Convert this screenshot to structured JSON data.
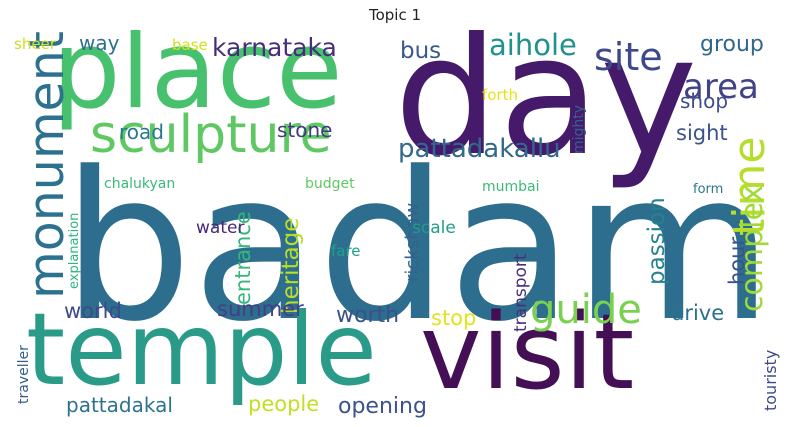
{
  "chart_data": {
    "type": "wordcloud",
    "title": "Topic 1",
    "words": [
      {
        "text": "badami",
        "color": "#2d6e8e"
      },
      {
        "text": "day",
        "color": "#451a6b"
      },
      {
        "text": "place",
        "color": "#47c16e"
      },
      {
        "text": "temple",
        "color": "#2a9a89"
      },
      {
        "text": "visit",
        "color": "#440f55"
      },
      {
        "text": "sculpture",
        "color": "#5ec962"
      },
      {
        "text": "monument",
        "color": "#2c728e"
      },
      {
        "text": "time",
        "color": "#b5de2b"
      },
      {
        "text": "site",
        "color": "#3e4989"
      },
      {
        "text": "area",
        "color": "#404388"
      },
      {
        "text": "guide",
        "color": "#7ad151"
      },
      {
        "text": "complex",
        "color": "#9fda3a"
      },
      {
        "text": "aihole",
        "color": "#21918c"
      },
      {
        "text": "karnataka",
        "color": "#472d7b"
      },
      {
        "text": "pattadakallu",
        "color": "#31688e"
      },
      {
        "text": "heritage",
        "color": "#b8de29"
      },
      {
        "text": "entrance",
        "color": "#35b779"
      },
      {
        "text": "passion",
        "color": "#25838e"
      },
      {
        "text": "hour",
        "color": "#3b528b"
      },
      {
        "text": "rickshaw",
        "color": "#355f8d"
      },
      {
        "text": "transport",
        "color": "#46307e"
      },
      {
        "text": "touristy",
        "color": "#3e4a89"
      },
      {
        "text": "road",
        "color": "#2a788e"
      },
      {
        "text": "stone",
        "color": "#443983"
      },
      {
        "text": "bus",
        "color": "#38598c"
      },
      {
        "text": "group",
        "color": "#31678e"
      },
      {
        "text": "shop",
        "color": "#3d4e8a"
      },
      {
        "text": "sight",
        "color": "#3b528b"
      },
      {
        "text": "worth",
        "color": "#3b518b"
      },
      {
        "text": "summer",
        "color": "#423f85"
      },
      {
        "text": "world",
        "color": "#3e4a89"
      },
      {
        "text": "drive",
        "color": "#2c718e"
      },
      {
        "text": "stop",
        "color": "#e1e419"
      },
      {
        "text": "people",
        "color": "#c2df23"
      },
      {
        "text": "opening",
        "color": "#3b528b"
      },
      {
        "text": "pattadakal",
        "color": "#2c738e"
      },
      {
        "text": "way",
        "color": "#2d708e"
      },
      {
        "text": "water",
        "color": "#482878"
      },
      {
        "text": "scale",
        "color": "#1f9e89"
      },
      {
        "text": "fare",
        "color": "#1fa187"
      },
      {
        "text": "chalukyan",
        "color": "#3aba76"
      },
      {
        "text": "budget",
        "color": "#5dc963"
      },
      {
        "text": "mumbai",
        "color": "#3bbb75"
      },
      {
        "text": "explanation",
        "color": "#2fb47c"
      },
      {
        "text": "traveller",
        "color": "#355e8d"
      },
      {
        "text": "mighty",
        "color": "#34618d"
      },
      {
        "text": "forth",
        "color": "#e5e419"
      },
      {
        "text": "form",
        "color": "#2a768e"
      },
      {
        "text": "sheer",
        "color": "#cde11d"
      },
      {
        "text": "base",
        "color": "#d2e21b"
      }
    ]
  }
}
